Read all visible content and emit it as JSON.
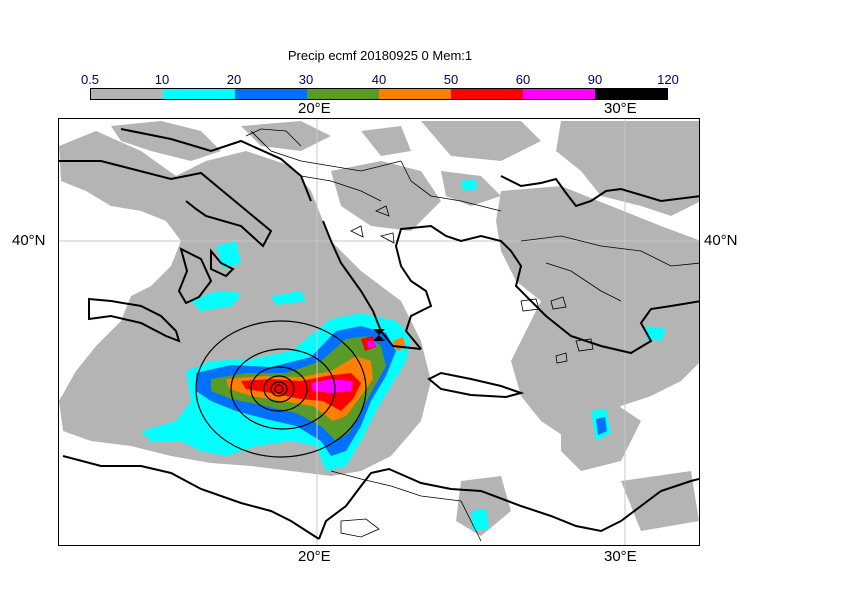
{
  "title": "Precip ecmf 20180925 0 Mem:1",
  "colorbar": {
    "levels": [
      "0.5",
      "10",
      "20",
      "30",
      "40",
      "50",
      "60",
      "90",
      "120"
    ],
    "colors": [
      "#b4b4b4",
      "#00ffff",
      "#0070ff",
      "#5a9a26",
      "#ff7f00",
      "#ff0000",
      "#ff00ff",
      "#000000"
    ]
  },
  "axes": {
    "lon_top": [
      "20°E",
      "30°E"
    ],
    "lon_bottom": [
      "20°E",
      "30°E"
    ],
    "lat_left": [
      "40°N"
    ],
    "lat_right": [
      "40°N"
    ]
  }
}
